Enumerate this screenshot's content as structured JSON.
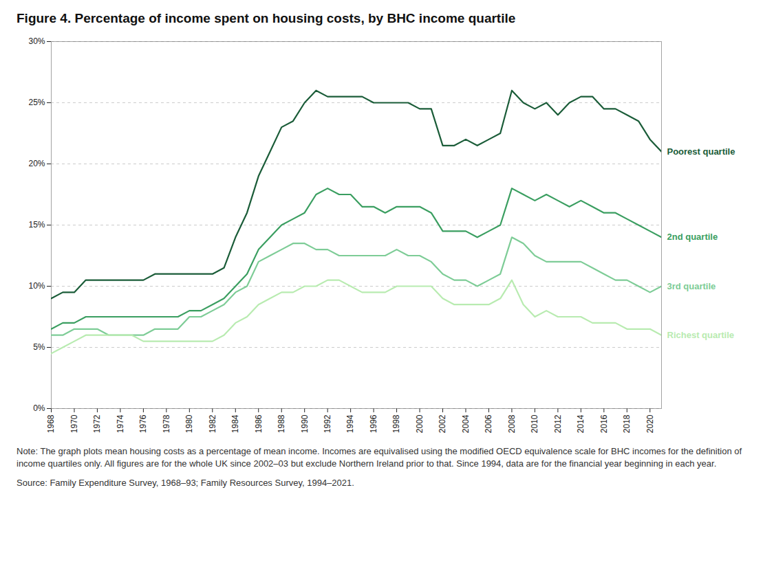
{
  "chart_data": {
    "type": "line",
    "title": "Figure 4.  Percentage of income spent on housing costs, by BHC income quartile",
    "x": [
      1968,
      1969,
      1970,
      1971,
      1972,
      1973,
      1974,
      1975,
      1976,
      1977,
      1978,
      1979,
      1980,
      1981,
      1982,
      1983,
      1984,
      1985,
      1986,
      1987,
      1988,
      1989,
      1990,
      1991,
      1992,
      1993,
      1994,
      1995,
      1996,
      1997,
      1998,
      1999,
      2000,
      2001,
      2002,
      2003,
      2004,
      2005,
      2006,
      2007,
      2008,
      2009,
      2010,
      2011,
      2012,
      2013,
      2014,
      2015,
      2016,
      2017,
      2018,
      2019,
      2020,
      2021
    ],
    "series": [
      {
        "name": "Poorest quartile",
        "color": "#1a5c38",
        "values": [
          9.0,
          9.5,
          9.5,
          10.5,
          10.5,
          10.5,
          10.5,
          10.5,
          10.5,
          11.0,
          11.0,
          11.0,
          11.0,
          11.0,
          11.0,
          11.5,
          14.0,
          16.0,
          19.0,
          21.0,
          23.0,
          23.5,
          25.0,
          26.0,
          25.5,
          25.5,
          25.5,
          25.5,
          25.0,
          25.0,
          25.0,
          25.0,
          24.5,
          24.5,
          21.5,
          21.5,
          22.0,
          21.5,
          22.0,
          22.5,
          26.0,
          25.0,
          24.5,
          25.0,
          24.0,
          25.0,
          25.5,
          25.5,
          24.5,
          24.5,
          24.0,
          23.5,
          22.0,
          21.0
        ]
      },
      {
        "name": "2nd quartile",
        "color": "#3a9e60",
        "values": [
          6.5,
          7.0,
          7.0,
          7.5,
          7.5,
          7.5,
          7.5,
          7.5,
          7.5,
          7.5,
          7.5,
          7.5,
          8.0,
          8.0,
          8.5,
          9.0,
          10.0,
          11.0,
          13.0,
          14.0,
          15.0,
          15.5,
          16.0,
          17.5,
          18.0,
          17.5,
          17.5,
          16.5,
          16.5,
          16.0,
          16.5,
          16.5,
          16.5,
          16.0,
          14.5,
          14.5,
          14.5,
          14.0,
          14.5,
          15.0,
          18.0,
          17.5,
          17.0,
          17.5,
          17.0,
          16.5,
          17.0,
          16.5,
          16.0,
          16.0,
          15.5,
          15.0,
          14.5,
          14.0
        ]
      },
      {
        "name": "3rd quartile",
        "color": "#7dcc96",
        "values": [
          6.0,
          6.0,
          6.5,
          6.5,
          6.5,
          6.0,
          6.0,
          6.0,
          6.0,
          6.5,
          6.5,
          6.5,
          7.5,
          7.5,
          8.0,
          8.5,
          9.5,
          10.0,
          12.0,
          12.5,
          13.0,
          13.5,
          13.5,
          13.0,
          13.0,
          12.5,
          12.5,
          12.5,
          12.5,
          12.5,
          13.0,
          12.5,
          12.5,
          12.0,
          11.0,
          10.5,
          10.5,
          10.0,
          10.5,
          11.0,
          14.0,
          13.5,
          12.5,
          12.0,
          12.0,
          12.0,
          12.0,
          11.5,
          11.0,
          10.5,
          10.5,
          10.0,
          9.5,
          10.0
        ]
      },
      {
        "name": "Richest quartile",
        "color": "#b8ebb0",
        "values": [
          4.5,
          5.0,
          5.5,
          6.0,
          6.0,
          6.0,
          6.0,
          6.0,
          5.5,
          5.5,
          5.5,
          5.5,
          5.5,
          5.5,
          5.5,
          6.0,
          7.0,
          7.5,
          8.5,
          9.0,
          9.5,
          9.5,
          10.0,
          10.0,
          10.5,
          10.5,
          10.0,
          9.5,
          9.5,
          9.5,
          10.0,
          10.0,
          10.0,
          10.0,
          9.0,
          8.5,
          8.5,
          8.5,
          8.5,
          9.0,
          10.5,
          8.5,
          7.5,
          8.0,
          7.5,
          7.5,
          7.5,
          7.0,
          7.0,
          7.0,
          6.5,
          6.5,
          6.5,
          6.0
        ]
      }
    ],
    "xlim": [
      1968,
      2021
    ],
    "xticks": [
      1968,
      1970,
      1972,
      1974,
      1976,
      1978,
      1980,
      1982,
      1984,
      1986,
      1988,
      1990,
      1992,
      1994,
      1996,
      1998,
      2000,
      2002,
      2004,
      2006,
      2008,
      2010,
      2012,
      2014,
      2016,
      2018,
      2020
    ],
    "ylim": [
      0,
      30
    ],
    "yticks": [
      {
        "value": 0,
        "label": "0%"
      },
      {
        "value": 5,
        "label": "5%"
      },
      {
        "value": 10,
        "label": "10%"
      },
      {
        "value": 15,
        "label": "15%"
      },
      {
        "value": 20,
        "label": "20%"
      },
      {
        "value": 25,
        "label": "25%"
      },
      {
        "value": 30,
        "label": "30%"
      }
    ],
    "grid": true,
    "note": "Note: The graph plots mean housing costs as a percentage of mean income. Incomes are equivalised using the modified OECD equivalence scale for BHC incomes for the definition of income quartiles only. All figures are for the whole UK since 2002–03 but exclude Northern Ireland prior to that. Since 1994, data are for the financial year beginning in each year.",
    "source": "Source: Family Expenditure Survey, 1968–93; Family Resources Survey, 1994–2021."
  }
}
